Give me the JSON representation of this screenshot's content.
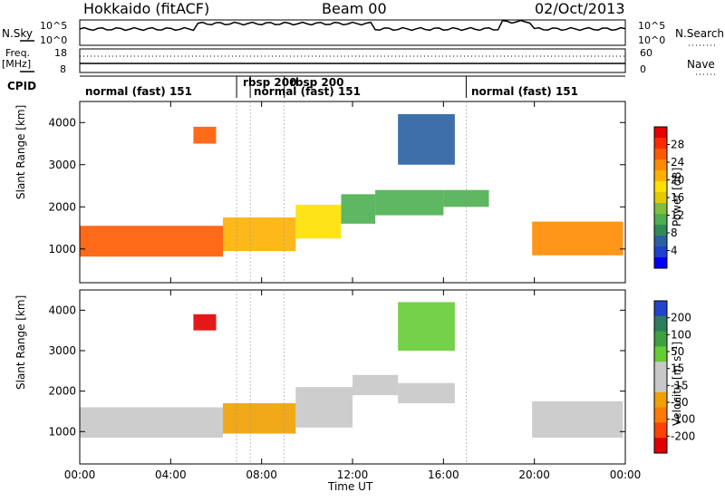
{
  "header": {
    "station": "Hokkaido (fitACF)",
    "beam": "Beam 00",
    "date": "02/Oct/2013"
  },
  "panels": {
    "nsky": {
      "label": "N.Sky",
      "right_label": "N.Search",
      "ticks_left": [
        "10^5",
        "10^0"
      ],
      "ticks_right": [
        "10^5",
        "10^0"
      ]
    },
    "freq": {
      "label_line1": "Freq.",
      "label_line2": "[MHz]",
      "right_label": "Nave",
      "ticks_left": [
        "18",
        "8"
      ],
      "ticks_right": [
        "60",
        "0"
      ]
    },
    "cpid": {
      "label": "CPID",
      "programs": [
        {
          "name": "normal (fast) 151",
          "start_hour": 0.0
        },
        {
          "name": "rbsp 200",
          "start_hour": 6.9
        },
        {
          "name": "normal (fast) 151",
          "start_hour": 7.5
        },
        {
          "name": "rbsp 200",
          "start_hour": 9.0
        },
        {
          "name": "normal (fast) 151",
          "start_hour": 17.0
        }
      ]
    }
  },
  "colorbars": {
    "power": {
      "label": "Power [dB]",
      "ticks": [
        "28",
        "24",
        "20",
        "16",
        "12",
        "8",
        "4"
      ],
      "colors": [
        "#e60000",
        "#ff2a00",
        "#ff5a00",
        "#ff8a00",
        "#ffb000",
        "#ffe000",
        "#e6c800",
        "#7fbf3f",
        "#4caf50",
        "#2e8b57",
        "#2a5fa0",
        "#1f3fd0",
        "#0000ff"
      ]
    },
    "velocity": {
      "label": "Velocity [m s⁻¹]",
      "ticks": [
        "200",
        "100",
        "50",
        "15",
        "-15",
        "-50",
        "-100",
        "-200"
      ],
      "colors": [
        "#2244cc",
        "#2e7d5a",
        "#3fa03f",
        "#66cc33",
        "#c8c8c8",
        "#c8c8c8",
        "#f0a000",
        "#ff7a00",
        "#ff4000",
        "#e00000"
      ]
    }
  },
  "chart_data": [
    {
      "type": "heatmap",
      "title": "Power",
      "xlabel": "",
      "ylabel": "Slant Range [km]",
      "xlim_hours": [
        0,
        24
      ],
      "ylim": [
        200,
        4500
      ],
      "yticks": [
        1000,
        2000,
        3000,
        4000
      ],
      "regions": [
        {
          "x": [
            0,
            6.3
          ],
          "y": [
            820,
            1550
          ],
          "power": 26
        },
        {
          "x": [
            6.3,
            9.5
          ],
          "y": [
            950,
            1750
          ],
          "power": 22
        },
        {
          "x": [
            9.5,
            11.5
          ],
          "y": [
            1250,
            2050
          ],
          "power": 18
        },
        {
          "x": [
            11.5,
            13
          ],
          "y": [
            1600,
            2300
          ],
          "power": 12
        },
        {
          "x": [
            13,
            16
          ],
          "y": [
            1800,
            2400
          ],
          "power": 10
        },
        {
          "x": [
            16,
            18
          ],
          "y": [
            2000,
            2400
          ],
          "power": 10
        },
        {
          "x": [
            19.9,
            23.9
          ],
          "y": [
            850,
            1650
          ],
          "power": 24
        },
        {
          "x": [
            5,
            6
          ],
          "y": [
            3500,
            3900
          ],
          "power": 26
        },
        {
          "x": [
            14,
            16.5
          ],
          "y": [
            3000,
            4200
          ],
          "power": 6
        }
      ]
    },
    {
      "type": "heatmap",
      "title": "Velocity",
      "xlabel": "Time UT",
      "ylabel": "Slant Range [km]",
      "xlim_hours": [
        0,
        24
      ],
      "ylim": [
        200,
        4500
      ],
      "yticks": [
        1000,
        2000,
        3000,
        4000
      ],
      "regions": [
        {
          "x": [
            0,
            6.3
          ],
          "y": [
            850,
            1600
          ],
          "velocity": 0
        },
        {
          "x": [
            6.3,
            9.5
          ],
          "y": [
            950,
            1700
          ],
          "velocity": -60
        },
        {
          "x": [
            9.5,
            12
          ],
          "y": [
            1100,
            2100
          ],
          "velocity": 0
        },
        {
          "x": [
            12,
            14
          ],
          "y": [
            1900,
            2400
          ],
          "velocity": 0
        },
        {
          "x": [
            14,
            16.5
          ],
          "y": [
            1700,
            2200
          ],
          "velocity": 0
        },
        {
          "x": [
            19.9,
            23.9
          ],
          "y": [
            850,
            1750
          ],
          "velocity": 0
        },
        {
          "x": [
            14,
            16.5
          ],
          "y": [
            3000,
            4200
          ],
          "velocity": 60
        },
        {
          "x": [
            5,
            6
          ],
          "y": [
            3500,
            3900
          ],
          "velocity": -200
        }
      ]
    }
  ],
  "xticks": [
    "00:00",
    "04:00",
    "08:00",
    "12:00",
    "16:00",
    "20:00",
    "00:00"
  ],
  "xlabel": "Time UT"
}
